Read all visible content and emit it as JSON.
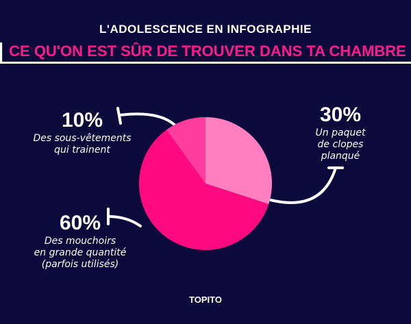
{
  "chart_data": {
    "type": "pie",
    "title": "L'ADOLESCENCE EN INFOGRAPHIE",
    "subtitle": "CE QU'ON EST SÛR DE TROUVER DANS TA CHAMBRE",
    "categories": [
      "Un paquet\nde clopes planqué",
      "Des mouchoirs\nen grande quantité\n(parfois utilisés)",
      "Des sous-vêtements\nqui trainent"
    ],
    "values": [
      30,
      60,
      10
    ],
    "value_labels": [
      "30%",
      "60%",
      "10%"
    ],
    "colors": [
      "#ff7fc0",
      "#ff0a80",
      "#ff3d9e"
    ],
    "source": "TOPITO"
  }
}
